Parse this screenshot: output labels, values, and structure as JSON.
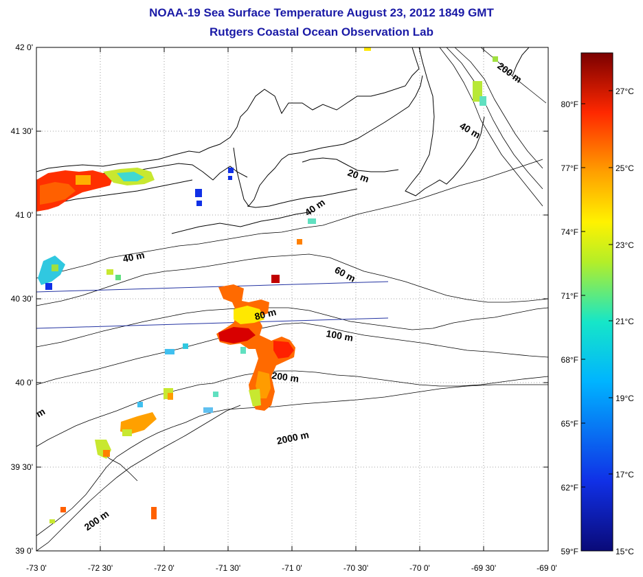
{
  "header": {
    "title": "NOAA-19 Sea Surface Temperature August 23, 2012 1849 GMT",
    "subtitle": "Rutgers Coastal Ocean Observation Lab"
  },
  "axes": {
    "lon_labels": [
      "-73 0'",
      "-72 30'",
      "-72 0'",
      "-71 30'",
      "-71 0'",
      "-70 30'",
      "-70 0'",
      "-69 30'",
      "-69 0'"
    ],
    "lat_labels": [
      "42 0'",
      "41 30'",
      "41 0'",
      "40 30'",
      "40 0'",
      "39 30'",
      "39 0'"
    ],
    "lon_range": [
      -73,
      -69
    ],
    "lat_range": [
      39,
      42
    ]
  },
  "contours": [
    {
      "label": "200 m"
    },
    {
      "label": "40 m"
    },
    {
      "label": "20 m"
    },
    {
      "label": "40 m"
    },
    {
      "label": "40 m"
    },
    {
      "label": "60 m"
    },
    {
      "label": "80 m"
    },
    {
      "label": "100 m"
    },
    {
      "label": "200 m"
    },
    {
      "label": "2000 m"
    },
    {
      "label": "200 m"
    },
    {
      "label": "m"
    }
  ],
  "colorbar": {
    "fahrenheit": [
      "80°F",
      "77°F",
      "74°F",
      "71°F",
      "68°F",
      "65°F",
      "62°F",
      "59°F"
    ],
    "celsius": [
      "27°C",
      "25°C",
      "23°C",
      "21°C",
      "19°C",
      "17°C",
      "15°C"
    ],
    "stops": [
      "#0a0a78",
      "#1030e6",
      "#00b4ff",
      "#16e6c8",
      "#b4ee28",
      "#fff200",
      "#ffa000",
      "#ff2800",
      "#7a0000"
    ]
  }
}
